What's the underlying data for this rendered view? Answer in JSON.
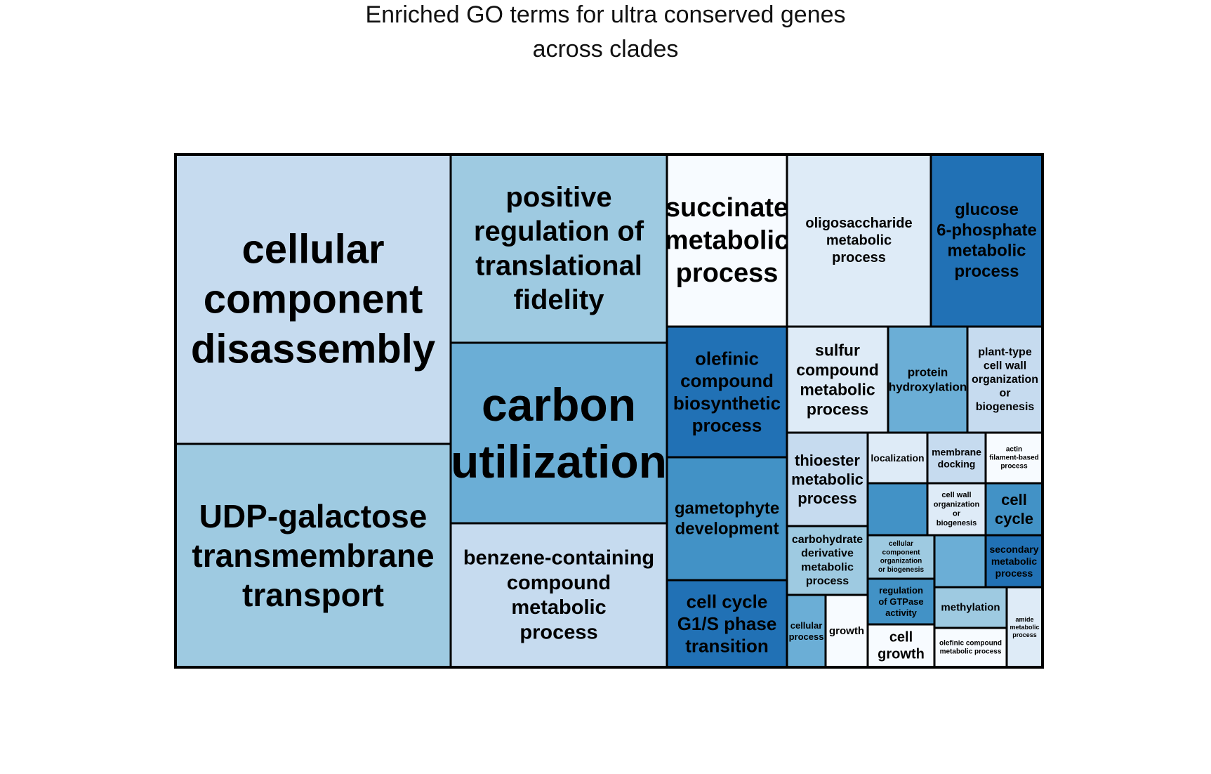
{
  "chart_data": {
    "type": "treemap",
    "title_lines": [
      "Enriched GO terms for ultra conserved genes",
      "across clades"
    ],
    "tiles": [
      {
        "lines": [
          "cellular",
          "component",
          "disassembly"
        ],
        "color": "#c6dbef"
      },
      {
        "lines": [
          "UDP-galactose",
          "transmembrane",
          "transport"
        ],
        "color": "#9ecae1"
      },
      {
        "lines": [
          "positive",
          "regulation of",
          "translational",
          "fidelity"
        ],
        "color": "#9ecae1"
      },
      {
        "lines": [
          "carbon",
          "utilization"
        ],
        "color": "#6baed6"
      },
      {
        "lines": [
          "benzene-containing",
          "compound",
          "metabolic",
          "process"
        ],
        "color": "#c6dbef"
      },
      {
        "lines": [
          "succinate",
          "metabolic",
          "process"
        ],
        "color": "#f7fbff"
      },
      {
        "lines": [
          "oligosaccharide",
          "metabolic",
          "process"
        ],
        "color": "#deebf7"
      },
      {
        "lines": [
          "glucose",
          "6-phosphate",
          "metabolic",
          "process"
        ],
        "color": "#2171b5"
      },
      {
        "lines": [
          "olefinic",
          "compound",
          "biosynthetic",
          "process"
        ],
        "color": "#2171b5"
      },
      {
        "lines": [
          "gametophyte",
          "development"
        ],
        "color": "#4292c6"
      },
      {
        "lines": [
          "cell cycle",
          "G1/S phase",
          "transition"
        ],
        "color": "#2171b5"
      },
      {
        "lines": [
          "sulfur",
          "compound",
          "metabolic",
          "process"
        ],
        "color": "#deebf7"
      },
      {
        "lines": [
          "protein",
          "hydroxylation"
        ],
        "color": "#6baed6"
      },
      {
        "lines": [
          "plant-type",
          "cell wall",
          "organization",
          "or",
          "biogenesis"
        ],
        "color": "#c6dbef"
      },
      {
        "lines": [
          "thioester",
          "metabolic",
          "process"
        ],
        "color": "#c6dbef"
      },
      {
        "lines": [
          "carbohydrate",
          "derivative",
          "metabolic",
          "process"
        ],
        "color": "#9ecae1"
      },
      {
        "lines": [
          "cellular",
          "process"
        ],
        "color": "#6baed6"
      },
      {
        "lines": [
          "growth"
        ],
        "color": "#f7fbff"
      },
      {
        "lines": [
          "localization"
        ],
        "color": "#deebf7"
      },
      {
        "lines": [
          "membrane",
          "docking"
        ],
        "color": "#c6dbef"
      },
      {
        "lines": [
          "actin",
          "filament-based",
          "process"
        ],
        "color": "#f7fbff"
      },
      {
        "lines": [],
        "color": "#4292c6"
      },
      {
        "lines": [
          "cell wall",
          "organization",
          "or",
          "biogenesis"
        ],
        "color": "#deebf7"
      },
      {
        "lines": [
          "cell",
          "cycle"
        ],
        "color": "#4292c6"
      },
      {
        "lines": [
          "cellular",
          "component",
          "organization",
          "or biogenesis"
        ],
        "color": "#9ecae1"
      },
      {
        "lines": [],
        "color": "#6baed6"
      },
      {
        "lines": [
          "secondary",
          "metabolic",
          "process"
        ],
        "color": "#2171b5"
      },
      {
        "lines": [
          "regulation",
          "of GTPase",
          "activity"
        ],
        "color": "#4292c6"
      },
      {
        "lines": [
          "methylation"
        ],
        "color": "#9ecae1"
      },
      {
        "lines": [
          "amide",
          "metabolic",
          "process"
        ],
        "color": "#deebf7"
      },
      {
        "lines": [
          "cell",
          "growth"
        ],
        "color": "#f7fbff"
      },
      {
        "lines": [
          "olefinic compound",
          "metabolic process"
        ],
        "color": "#f7fbff"
      }
    ]
  }
}
